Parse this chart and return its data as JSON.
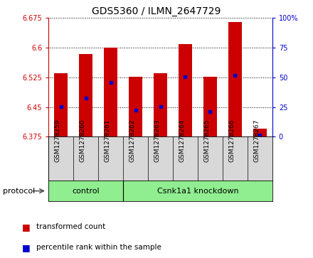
{
  "title": "GDS5360 / ILMN_2647729",
  "samples": [
    "GSM1278259",
    "GSM1278260",
    "GSM1278261",
    "GSM1278262",
    "GSM1278263",
    "GSM1278264",
    "GSM1278265",
    "GSM1278266",
    "GSM1278267"
  ],
  "bar_tops": [
    6.535,
    6.585,
    6.6,
    6.527,
    6.535,
    6.61,
    6.527,
    6.665,
    6.395
  ],
  "bar_bottom": 6.375,
  "blue_values": [
    6.452,
    6.473,
    6.512,
    6.443,
    6.452,
    6.527,
    6.438,
    6.53,
    6.38
  ],
  "ylim": [
    6.375,
    6.675
  ],
  "yticks": [
    6.375,
    6.45,
    6.525,
    6.6,
    6.675
  ],
  "right_yticks": [
    0,
    25,
    50,
    75,
    100
  ],
  "right_yticklabels": [
    "0",
    "25",
    "50",
    "75",
    "100%"
  ],
  "bar_color": "#cc0000",
  "blue_color": "#0000cc",
  "protocol_green": "#90ee90",
  "control_samples": 3,
  "knockdown_samples": 6,
  "control_label": "control",
  "knockdown_label": "Csnk1a1 knockdown",
  "protocol_label": "protocol",
  "legend_red": "transformed count",
  "legend_blue": "percentile rank within the sample",
  "axis_color_left": "#cc0000",
  "axis_color_right": "#0000cc",
  "bg_gray": "#d8d8d8",
  "plot_bg": "#ffffff",
  "left_ytick_labels": [
    "6.375",
    "6.45",
    "6.525",
    "6.6",
    "6.675"
  ]
}
